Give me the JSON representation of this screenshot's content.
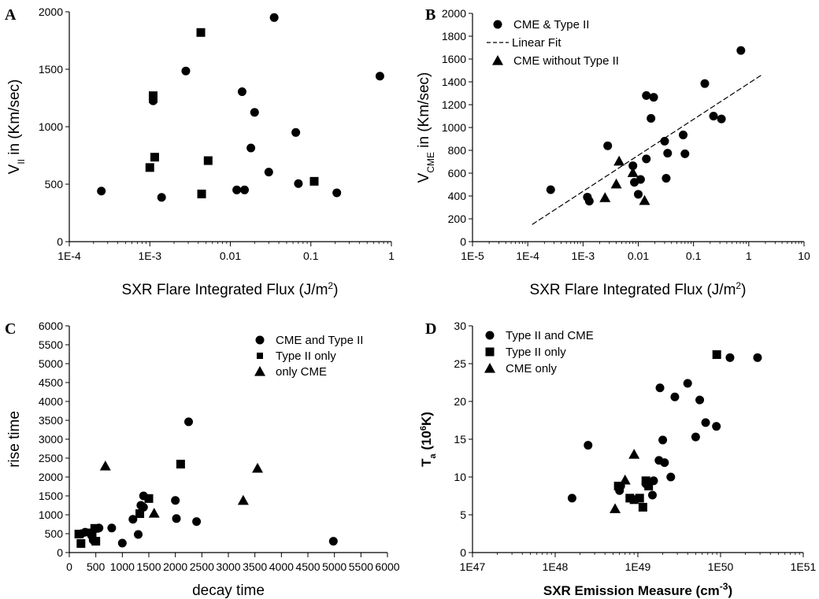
{
  "chart_data": [
    {
      "panel": "A",
      "type": "scatter",
      "xscale": "log",
      "xlim": [
        0.0001,
        1
      ],
      "ylim": [
        0,
        2000
      ],
      "xticks": [
        "1E-4",
        "1E-3",
        "0.01",
        "0.1",
        "1"
      ],
      "yticks": [
        "0",
        "500",
        "1000",
        "1500",
        "2000"
      ],
      "xlabel": "SXR Flare Integrated Flux (J/m²)",
      "ylabel": "VII in (Km/sec)",
      "legend": [],
      "series": [
        {
          "marker": "circle",
          "points": [
            [
              0.00025,
              440
            ],
            [
              0.0014,
              385
            ],
            [
              0.0011,
              1225
            ],
            [
              0.0028,
              1485
            ],
            [
              0.012,
              450
            ],
            [
              0.014,
              1305
            ],
            [
              0.015,
              450
            ],
            [
              0.018,
              815
            ],
            [
              0.02,
              1125
            ],
            [
              0.03,
              605
            ],
            [
              0.035,
              1950
            ],
            [
              0.065,
              950
            ],
            [
              0.07,
              505
            ],
            [
              0.21,
              425
            ],
            [
              0.72,
              1440
            ]
          ]
        },
        {
          "marker": "square",
          "points": [
            [
              0.001,
              645
            ],
            [
              0.0011,
              1270
            ],
            [
              0.0011,
              1245
            ],
            [
              0.00115,
              735
            ],
            [
              0.0043,
              1820
            ],
            [
              0.0044,
              415
            ],
            [
              0.0053,
              705
            ],
            [
              0.11,
              525
            ]
          ]
        }
      ]
    },
    {
      "panel": "B",
      "type": "scatter",
      "xscale": "log",
      "xlim": [
        1e-05,
        10
      ],
      "ylim": [
        0,
        2000
      ],
      "xticks": [
        "1E-5",
        "1E-4",
        "1E-3",
        "0.01",
        "0.1",
        "1",
        "10"
      ],
      "yticks": [
        "0",
        "200",
        "400",
        "600",
        "800",
        "1000",
        "1200",
        "1400",
        "1600",
        "1800",
        "2000"
      ],
      "xlabel": "SXR Flare Integrated Flux (J/m²)",
      "ylabel": "VCME in (Km/sec)",
      "legend": [
        "CME & Type II",
        "Linear Fit",
        "CME without Type II"
      ],
      "fit_line": [
        [
          0.00012,
          150
        ],
        [
          1.7,
          1460
        ]
      ],
      "series": [
        {
          "marker": "circle",
          "points": [
            [
              0.00026,
              455
            ],
            [
              0.0012,
              390
            ],
            [
              0.0013,
              355
            ],
            [
              0.0028,
              840
            ],
            [
              0.008,
              665
            ],
            [
              0.0085,
              520
            ],
            [
              0.01,
              415
            ],
            [
              0.011,
              545
            ],
            [
              0.014,
              725
            ],
            [
              0.014,
              1280
            ],
            [
              0.017,
              1080
            ],
            [
              0.019,
              1265
            ],
            [
              0.03,
              880
            ],
            [
              0.032,
              555
            ],
            [
              0.034,
              775
            ],
            [
              0.065,
              935
            ],
            [
              0.07,
              770
            ],
            [
              0.16,
              1385
            ],
            [
              0.23,
              1100
            ],
            [
              0.32,
              1075
            ],
            [
              0.72,
              1675
            ]
          ]
        },
        {
          "marker": "triangle",
          "points": [
            [
              0.0025,
              385
            ],
            [
              0.004,
              505
            ],
            [
              0.0045,
              705
            ],
            [
              0.008,
              605
            ],
            [
              0.013,
              360
            ]
          ]
        }
      ]
    },
    {
      "panel": "C",
      "type": "scatter",
      "xscale": "linear",
      "xlim": [
        0,
        6000
      ],
      "ylim": [
        0,
        6000
      ],
      "xticks": [
        "0",
        "500",
        "1000",
        "1500",
        "2000",
        "2500",
        "3000",
        "3500",
        "4000",
        "4500",
        "5000",
        "5500",
        "6000"
      ],
      "yticks": [
        "0",
        "500",
        "1000",
        "1500",
        "2000",
        "2500",
        "3000",
        "3500",
        "4000",
        "4500",
        "5000",
        "5500",
        "6000"
      ],
      "xlabel": "decay time",
      "ylabel": "rise time",
      "legend": [
        "CME and Type II",
        "Type II only",
        "only CME"
      ],
      "series": [
        {
          "marker": "circle",
          "points": [
            [
              230,
              500
            ],
            [
              300,
              540
            ],
            [
              420,
              450
            ],
            [
              450,
              330
            ],
            [
              560,
              650
            ],
            [
              800,
              650
            ],
            [
              1000,
              250
            ],
            [
              1200,
              880
            ],
            [
              1300,
              480
            ],
            [
              1350,
              1250
            ],
            [
              1400,
              1500
            ],
            [
              1400,
              1200
            ],
            [
              2000,
              1380
            ],
            [
              2020,
              900
            ],
            [
              2250,
              3460
            ],
            [
              2400,
              820
            ],
            [
              4980,
              300
            ]
          ]
        },
        {
          "marker": "square",
          "points": [
            [
              180,
              490
            ],
            [
              220,
              240
            ],
            [
              430,
              520
            ],
            [
              480,
              640
            ],
            [
              500,
              300
            ],
            [
              1330,
              1030
            ],
            [
              1500,
              1430
            ],
            [
              2100,
              2340
            ]
          ]
        },
        {
          "marker": "triangle",
          "points": [
            [
              680,
              2290
            ],
            [
              1600,
              1040
            ],
            [
              3280,
              1380
            ],
            [
              3550,
              2230
            ]
          ]
        }
      ]
    },
    {
      "panel": "D",
      "type": "scatter",
      "xscale": "log",
      "xlim": [
        1e+47,
        1e+51
      ],
      "ylim": [
        0,
        30
      ],
      "xticks": [
        "1E47",
        "1E48",
        "1E49",
        "1E50",
        "1E51"
      ],
      "yticks": [
        "0",
        "5",
        "10",
        "15",
        "20",
        "25",
        "30"
      ],
      "xlabel": "SXR Emission Measure (cm⁻³)",
      "ylabel": "Ta (10⁶K)",
      "legend": [
        "Type II and CME",
        "Type II only",
        "CME only"
      ],
      "series": [
        {
          "marker": "circle",
          "points": [
            [
              1.6e+48,
              7.2
            ],
            [
              2.5e+48,
              14.2
            ],
            [
              6e+48,
              8.2
            ],
            [
              6.2e+48,
              8.8
            ],
            [
              1.25e+49,
              9.1
            ],
            [
              1.5e+49,
              7.6
            ],
            [
              1.55e+49,
              9.5
            ],
            [
              1.8e+49,
              12.2
            ],
            [
              1.85e+49,
              21.8
            ],
            [
              2e+49,
              14.9
            ],
            [
              2.1e+49,
              11.9
            ],
            [
              2.5e+49,
              10
            ],
            [
              2.8e+49,
              20.6
            ],
            [
              4e+49,
              22.4
            ],
            [
              5e+49,
              15.3
            ],
            [
              5.6e+49,
              20.2
            ],
            [
              6.6e+49,
              17.2
            ],
            [
              8.9e+49,
              16.7
            ],
            [
              1.3e+50,
              25.8
            ],
            [
              2.8e+50,
              25.8
            ]
          ]
        },
        {
          "marker": "square",
          "points": [
            [
              5.8e+48,
              8.8
            ],
            [
              8e+48,
              7.2
            ],
            [
              9e+48,
              7
            ],
            [
              1.05e+49,
              7.2
            ],
            [
              1.15e+49,
              6
            ],
            [
              1.25e+49,
              9.5
            ],
            [
              1.35e+49,
              8.8
            ],
            [
              9e+49,
              26.2
            ]
          ]
        },
        {
          "marker": "triangle",
          "points": [
            [
              5.3e+48,
              5.8
            ],
            [
              7e+48,
              9.6
            ],
            [
              9e+48,
              13
            ]
          ]
        }
      ]
    }
  ]
}
